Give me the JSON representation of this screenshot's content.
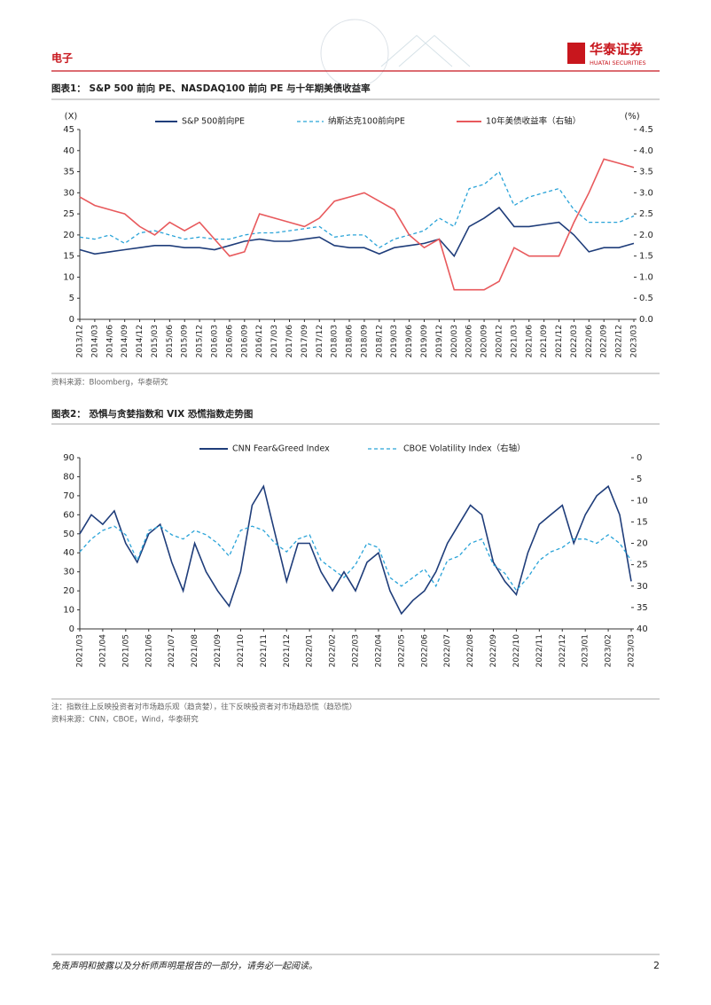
{
  "header": {
    "section": "电子",
    "logo": "华泰证券",
    "logo_sub": "HUATAI SECURITIES"
  },
  "chart_data": [
    {
      "type": "line",
      "title": "图表1： S&P 500 前向 PE、NASDAQ100 前向 PE 与十年期美债收益率",
      "source": "资料来源：Bloomberg，华泰研究",
      "y_unit": "(X)",
      "y2_unit": "(%)",
      "categories": [
        "2013/12",
        "2014/03",
        "2014/06",
        "2014/09",
        "2014/12",
        "2015/03",
        "2015/06",
        "2015/09",
        "2015/12",
        "2016/03",
        "2016/06",
        "2016/09",
        "2016/12",
        "2017/03",
        "2017/06",
        "2017/09",
        "2017/12",
        "2018/03",
        "2018/06",
        "2018/09",
        "2018/12",
        "2019/03",
        "2019/06",
        "2019/09",
        "2019/12",
        "2020/03",
        "2020/06",
        "2020/09",
        "2020/12",
        "2021/03",
        "2021/06",
        "2021/09",
        "2021/12",
        "2022/03",
        "2022/06",
        "2022/09",
        "2022/12",
        "2023/03"
      ],
      "ylim": [
        0,
        45
      ],
      "yticks": [
        0,
        5,
        10,
        15,
        20,
        25,
        30,
        35,
        40,
        45
      ],
      "y2lim": [
        0,
        4.5
      ],
      "y2ticks": [
        {
          "value": 0,
          "label": "0.0"
        },
        0.5,
        {
          "value": 1,
          "label": "1.0"
        },
        1.5,
        {
          "value": 2,
          "label": "2.0"
        },
        2.5,
        {
          "value": 3,
          "label": "3.0"
        },
        3.5,
        {
          "value": 4,
          "label": "4.0"
        },
        4.5
      ],
      "grid": false,
      "series": [
        {
          "name": "S&P 500前向PE",
          "color": "#1f3d7a",
          "style": "solid",
          "values": [
            16.5,
            15.5,
            16,
            16.5,
            17,
            17.5,
            17.5,
            17,
            17,
            16.5,
            17.5,
            18.5,
            19,
            18.5,
            18.5,
            19,
            19.5,
            17.5,
            17,
            17,
            15.5,
            17,
            17.5,
            18,
            19,
            15,
            22,
            24,
            26.5,
            22,
            22,
            22.5,
            23,
            20,
            16,
            17,
            17,
            18
          ]
        },
        {
          "name": "纳斯达克100前向PE",
          "color": "#29a3d8",
          "style": "dashed",
          "values": [
            19.5,
            19,
            20,
            18,
            20.5,
            21,
            20,
            19,
            19.5,
            19,
            19,
            20,
            20.5,
            20.5,
            21,
            21.5,
            22,
            19.5,
            20,
            20,
            17,
            19,
            20,
            21,
            24,
            22,
            31,
            32,
            35,
            27,
            29,
            30,
            31,
            26,
            23,
            23,
            23,
            24.5
          ]
        },
        {
          "name": "10年美债收益率（右轴）",
          "color": "#e8595c",
          "style": "solid",
          "axis": "y2",
          "values": [
            2.9,
            2.7,
            2.6,
            2.5,
            2.2,
            2.0,
            2.3,
            2.1,
            2.3,
            1.9,
            1.5,
            1.6,
            2.5,
            2.4,
            2.3,
            2.2,
            2.4,
            2.8,
            2.9,
            3.0,
            2.8,
            2.6,
            2.0,
            1.7,
            1.9,
            0.7,
            0.7,
            0.7,
            0.9,
            1.7,
            1.5,
            1.5,
            1.5,
            2.3,
            3.0,
            3.8,
            3.7,
            3.6
          ]
        }
      ]
    },
    {
      "type": "line",
      "title": "图表2： 恐惧与贪婪指数和 VIX 恐慌指数走势图",
      "note": "注：指数往上反映投资者对市场趋乐观（趋贪婪），往下反映投资者对市场趋恐慌（趋恐慌）",
      "source": "资料来源：CNN，CBOE，Wind，华泰研究",
      "categories": [
        "2021/03",
        null,
        "2021/04",
        null,
        "2021/05",
        null,
        "2021/06",
        null,
        "2021/07",
        null,
        "2021/08",
        null,
        "2021/09",
        null,
        "2021/10",
        null,
        "2021/11",
        null,
        "2021/12",
        null,
        "2022/01",
        null,
        "2022/02",
        null,
        "2022/03",
        null,
        "2022/04",
        null,
        "2022/05",
        null,
        "2022/06",
        null,
        "2022/07",
        null,
        "2022/08",
        null,
        "2022/09",
        null,
        "2022/10",
        null,
        "2022/11",
        null,
        "2022/12",
        null,
        "2023/01",
        null,
        "2023/02",
        null,
        "2023/03"
      ],
      "ylim": [
        0,
        90
      ],
      "yticks": [
        0,
        10,
        20,
        30,
        40,
        50,
        60,
        70,
        80,
        90
      ],
      "y2lim": [
        40,
        0
      ],
      "y2ticks": [
        0,
        5,
        10,
        15,
        20,
        25,
        30,
        35,
        40
      ],
      "grid": false,
      "series": [
        {
          "name": "CNN Fear&Greed Index",
          "color": "#1f3d7a",
          "style": "solid",
          "values": [
            50,
            60,
            55,
            62,
            45,
            35,
            50,
            55,
            35,
            20,
            45,
            30,
            20,
            12,
            30,
            65,
            75,
            50,
            25,
            45,
            45,
            30,
            20,
            30,
            20,
            35,
            40,
            20,
            8,
            15,
            20,
            30,
            45,
            55,
            65,
            60,
            35,
            25,
            18,
            40,
            55,
            60,
            65,
            45,
            60,
            70,
            75,
            60,
            25
          ]
        },
        {
          "name": "CBOE Volatility Index（右轴）",
          "color": "#29a3d8",
          "style": "dashed",
          "axis": "y2",
          "values": [
            22,
            19,
            17,
            16,
            18,
            24,
            17,
            16,
            18,
            19,
            17,
            18,
            20,
            23,
            17,
            16,
            17,
            20,
            22,
            19,
            18,
            24,
            26,
            28,
            25,
            20,
            21,
            28,
            30,
            28,
            26,
            30,
            24,
            23,
            20,
            19,
            25,
            27,
            31,
            28,
            24,
            22,
            21,
            19,
            19,
            20,
            18,
            20,
            24
          ]
        }
      ]
    }
  ],
  "footer": {
    "disclaimer": "免责声明和披露以及分析师声明是报告的一部分，请务必一起阅读。",
    "page": "2"
  }
}
